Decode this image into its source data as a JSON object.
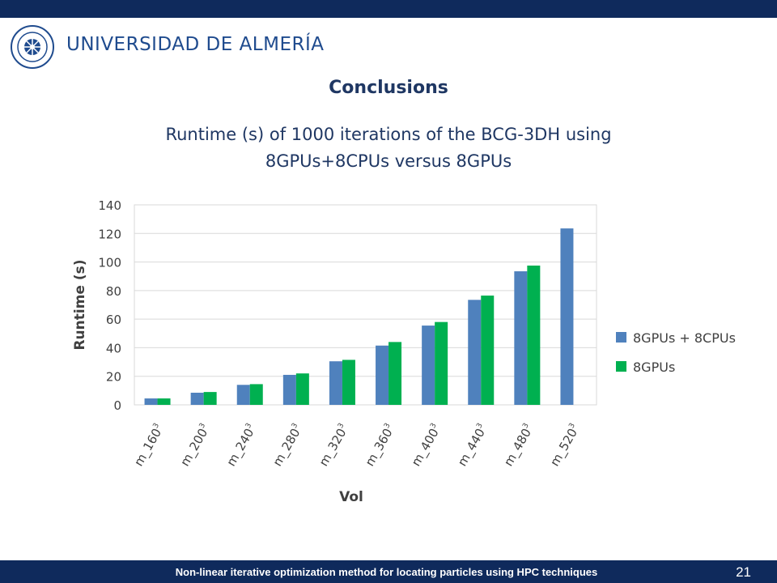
{
  "header": {
    "logo": {
      "name": "universidad-de-almeria-logo",
      "text": "UNIVERSIDAD DE ALMERÍA",
      "seal_text": "IN LUMINE SAPIENTIA · UNIVERSITAS ALMERIENSIS"
    },
    "section_title": "Conclusions",
    "slide_title_line1": "Runtime (s) of 1000 iterations of the BCG-3DH using",
    "slide_title_line2": "8GPUs+8CPUs versus 8GPUs"
  },
  "chart_data": {
    "type": "bar",
    "categories": [
      "m_160",
      "m_200",
      "m_240",
      "m_280",
      "m_320",
      "m_360",
      "m_400",
      "m_440",
      "m_480",
      "m_520"
    ],
    "category_superscript": "3",
    "series": [
      {
        "name": "8GPUs + 8CPUs",
        "color": "#4f81bd",
        "values": [
          4.5,
          8.5,
          14,
          21,
          30.5,
          41.5,
          55.5,
          73.5,
          93.5,
          123.5
        ]
      },
      {
        "name": "8GPUs",
        "color": "#00b050",
        "values": [
          4.5,
          9,
          14.5,
          22,
          31.5,
          44,
          58,
          76.5,
          97.5,
          null
        ]
      }
    ],
    "xlabel": "Vol",
    "ylabel": "Runtime (s)",
    "ylim": [
      0,
      140
    ],
    "yticks": [
      0,
      20,
      40,
      60,
      80,
      100,
      120,
      140
    ],
    "grid": true,
    "legend_position": "right"
  },
  "footer": {
    "text": "Non-linear iterative optimization method for locating particles using HPC techniques",
    "page_number": "21"
  }
}
